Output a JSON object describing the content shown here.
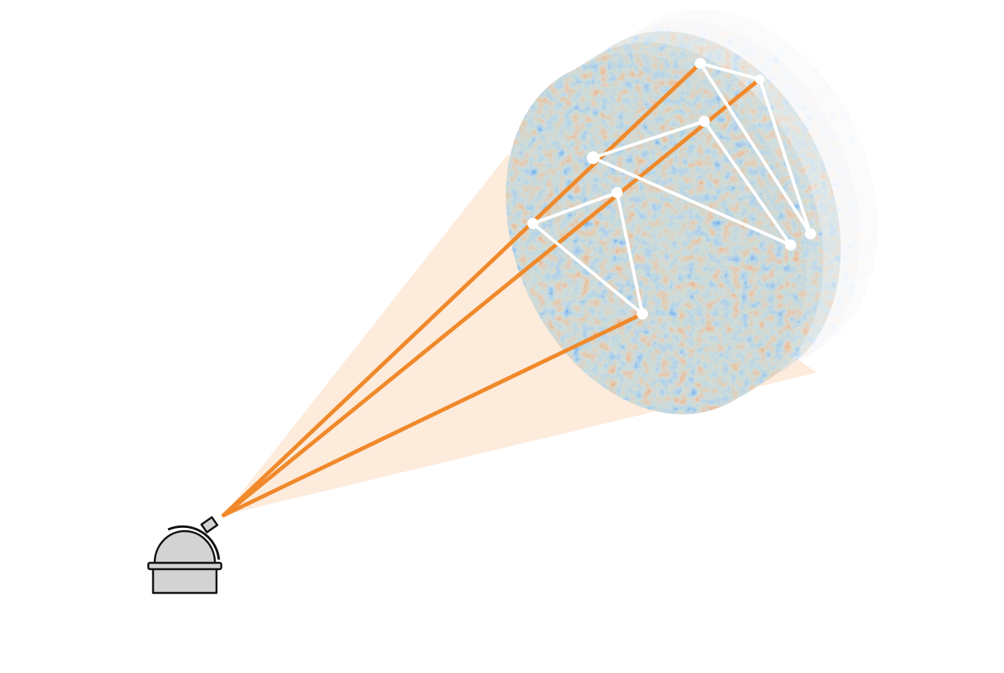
{
  "colors": {
    "background": "#ffffff",
    "cone_fill": "#fdebdc",
    "sight_line": "#f0892a",
    "triangle_stroke": "#ffffff",
    "map_cold": "#1f4fc4",
    "map_mid": "#8fb3c9",
    "map_warm": "#d4561a",
    "observatory_fill": "#d3d3d3",
    "observatory_stroke": "#111111"
  },
  "icons": {
    "observer": "observatory-dome-icon"
  },
  "diagram": {
    "layer_count": 6,
    "triangle_count": 3,
    "sight_line_count": 3
  }
}
